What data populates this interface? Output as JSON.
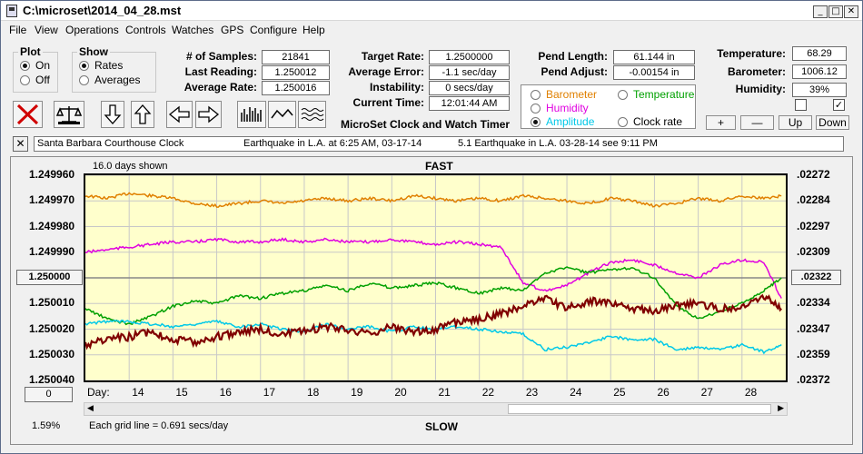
{
  "window": {
    "title": "C:\\microset\\2014_04_28.mst",
    "minimize": "_",
    "maximize": "□",
    "close": "✕"
  },
  "menu": [
    "File",
    "View",
    "Operations",
    "Controls",
    "Watches",
    "GPS",
    "Configure",
    "Help"
  ],
  "plot_group": {
    "title": "Plot",
    "on": "On",
    "off": "Off",
    "selected": "On"
  },
  "show_group": {
    "title": "Show",
    "rates": "Rates",
    "averages": "Averages",
    "selected": "Rates"
  },
  "stats": {
    "samples_label": "# of Samples:",
    "samples": "21841",
    "last_label": "Last Reading:",
    "last": "1.250012",
    "avg_label": "Average Rate:",
    "avg": "1.250016",
    "target_label": "Target Rate:",
    "target": "1.2500000",
    "error_label": "Average Error:",
    "error": "-1.1 sec/day",
    "instab_label": "Instability:",
    "instab": "0 secs/day",
    "time_label": "Current Time:",
    "time": "12:01:44 AM",
    "pendlen_label": "Pend Length:",
    "pendlen": "61.144 in",
    "pendadj_label": "Pend Adjust:",
    "pendadj": "-0.00154 in",
    "temp_label": "Temperature:",
    "temp": "68.29",
    "baro_label": "Barometer:",
    "baro": "1006.12",
    "hum_label": "Humidity:",
    "hum": "39%"
  },
  "app_caption": "MicroSet Clock and Watch Timer",
  "overlay": {
    "barometer": "Barometer",
    "temperature": "Temperature",
    "humidity": "Humidity",
    "amplitude": "Amplitude",
    "clockrate": "Clock rate",
    "selected": "Amplitude"
  },
  "overlay_colors": {
    "barometer": "#e08000",
    "temperature": "#00a000",
    "humidity": "#e000e0",
    "amplitude": "#00c8e8",
    "clockrate": "#000000"
  },
  "scale_buttons": {
    "plus": "+",
    "minus": "—",
    "up": "Up",
    "down": "Down"
  },
  "checkboxes": {
    "left": false,
    "right": true
  },
  "notes": {
    "close": "✕",
    "items": [
      "Santa Barbara Courthouse Clock",
      "Earthquake in L.A. at 6:25 AM, 03-17-14",
      "5.1 Earthquake in L.A. 03-28-14  see 9:11 PM"
    ]
  },
  "chart_header": {
    "days_shown": "16.0 days shown",
    "fast": "FAST",
    "slow": "SLOW",
    "grid_note": "Each grid line = 0.691 secs/day",
    "percent": "1.59%",
    "zero_btn": "0",
    "day_label": "Day:"
  },
  "chart_data": {
    "type": "line",
    "x_label": "Day:",
    "y_left_ticks": [
      "1.249960",
      "1.249970",
      "1.249980",
      "1.249990",
      "1.250000",
      "1.250010",
      "1.250020",
      "1.250030",
      "1.250040"
    ],
    "y_left_highlight": "1.250000",
    "y_right_ticks": [
      ".02272",
      ".02284",
      ".02297",
      ".02309",
      ".02322",
      ".02334",
      ".02347",
      ".02359",
      ".02372"
    ],
    "y_right_highlight": ".02322",
    "x_ticks": [
      "14",
      "15",
      "16",
      "17",
      "18",
      "19",
      "20",
      "21",
      "22",
      "23",
      "24",
      "25",
      "26",
      "27",
      "28"
    ],
    "xlim": [
      13,
      29
    ],
    "ylim": [
      1.24996,
      1.25004
    ],
    "series": [
      {
        "color": "#e08000",
        "x": [
          13.0,
          13.5,
          14.0,
          14.5,
          15.0,
          15.5,
          16.0,
          16.5,
          17.0,
          17.5,
          18.0,
          18.5,
          19.0,
          19.5,
          20.0,
          20.5,
          21.0,
          21.5,
          22.0,
          22.5,
          23.0,
          23.5,
          24.0,
          24.5,
          25.0,
          25.5,
          26.0,
          26.5,
          27.0,
          27.5,
          28.0,
          28.5,
          28.9
        ],
        "y": [
          1.249968,
          1.249969,
          1.249967,
          1.249968,
          1.249969,
          1.249971,
          1.249972,
          1.249971,
          1.24997,
          1.249971,
          1.24997,
          1.249969,
          1.24997,
          1.249969,
          1.24997,
          1.249968,
          1.249969,
          1.24997,
          1.249969,
          1.24997,
          1.249968,
          1.249969,
          1.24997,
          1.249971,
          1.249969,
          1.24997,
          1.249972,
          1.249971,
          1.249969,
          1.24997,
          1.249968,
          1.249969,
          1.249968
        ]
      },
      {
        "color": "#e000e0",
        "x": [
          13.0,
          13.5,
          14.0,
          14.5,
          15.0,
          15.5,
          16.0,
          16.5,
          17.0,
          17.5,
          18.0,
          18.5,
          19.0,
          19.5,
          20.0,
          20.5,
          21.0,
          21.5,
          22.0,
          22.5,
          23.0,
          23.5,
          24.0,
          24.5,
          25.0,
          25.5,
          26.0,
          26.5,
          27.0,
          27.5,
          28.0,
          28.5,
          28.9
        ],
        "y": [
          1.24999,
          1.249989,
          1.249988,
          1.249987,
          1.249986,
          1.249986,
          1.249985,
          1.249986,
          1.249986,
          1.249985,
          1.249986,
          1.249985,
          1.249986,
          1.249986,
          1.249985,
          1.249986,
          1.249987,
          1.249986,
          1.249987,
          1.249988,
          1.250002,
          1.250005,
          1.250003,
          1.249998,
          1.249994,
          1.249993,
          1.249995,
          1.249998,
          1.25,
          1.249995,
          1.249993,
          1.249994,
          1.250008
        ]
      },
      {
        "color": "#00a000",
        "x": [
          13.0,
          13.5,
          14.0,
          14.5,
          15.0,
          15.5,
          16.0,
          16.5,
          17.0,
          17.5,
          18.0,
          18.5,
          19.0,
          19.5,
          20.0,
          20.5,
          21.0,
          21.5,
          22.0,
          22.5,
          23.0,
          23.5,
          24.0,
          24.5,
          25.0,
          25.5,
          26.0,
          26.5,
          27.0,
          27.5,
          28.0,
          28.5,
          28.9
        ],
        "y": [
          1.250012,
          1.250016,
          1.250018,
          1.250015,
          1.250011,
          1.250009,
          1.25001,
          1.250007,
          1.250008,
          1.250006,
          1.250005,
          1.250003,
          1.250005,
          1.250002,
          1.250004,
          1.250003,
          1.250002,
          1.250004,
          1.250006,
          1.250004,
          1.250005,
          1.249998,
          1.249996,
          1.249998,
          1.249997,
          1.249996,
          1.25,
          1.250011,
          1.250016,
          1.250013,
          1.25001,
          1.250005,
          1.25
        ]
      },
      {
        "color": "#00c8e8",
        "x": [
          13.0,
          13.5,
          14.0,
          14.5,
          15.0,
          15.5,
          16.0,
          16.5,
          17.0,
          17.5,
          18.0,
          18.5,
          19.0,
          19.5,
          20.0,
          20.5,
          21.0,
          21.5,
          22.0,
          22.5,
          23.0,
          23.5,
          24.0,
          24.5,
          25.0,
          25.5,
          26.0,
          26.5,
          27.0,
          27.5,
          28.0,
          28.5,
          28.9
        ],
        "y": [
          1.250018,
          1.250017,
          1.250017,
          1.250018,
          1.250019,
          1.250018,
          1.250017,
          1.250019,
          1.250018,
          1.25002,
          1.250021,
          1.250018,
          1.25002,
          1.250019,
          1.250021,
          1.250019,
          1.25002,
          1.250019,
          1.25002,
          1.250021,
          1.250022,
          1.250028,
          1.250027,
          1.250025,
          1.250023,
          1.250024,
          1.250024,
          1.250028,
          1.250027,
          1.250028,
          1.250026,
          1.250029,
          1.250026
        ]
      },
      {
        "color": "#800000",
        "x": [
          13.0,
          13.5,
          14.0,
          14.5,
          15.0,
          15.5,
          16.0,
          16.5,
          17.0,
          17.5,
          18.0,
          18.5,
          19.0,
          19.5,
          20.0,
          20.5,
          21.0,
          21.5,
          22.0,
          22.5,
          23.0,
          23.5,
          24.0,
          24.5,
          25.0,
          25.5,
          26.0,
          26.5,
          27.0,
          27.5,
          28.0,
          28.5,
          28.9
        ],
        "y": [
          1.250026,
          1.250024,
          1.250023,
          1.250021,
          1.250024,
          1.250025,
          1.250023,
          1.250021,
          1.25002,
          1.250022,
          1.250021,
          1.250019,
          1.25002,
          1.250022,
          1.250019,
          1.250021,
          1.25002,
          1.250017,
          1.250016,
          1.250014,
          1.250011,
          1.250008,
          1.250012,
          1.250009,
          1.25001,
          1.250012,
          1.250013,
          1.250011,
          1.25001,
          1.250012,
          1.250011,
          1.250007,
          1.250012
        ]
      }
    ]
  }
}
